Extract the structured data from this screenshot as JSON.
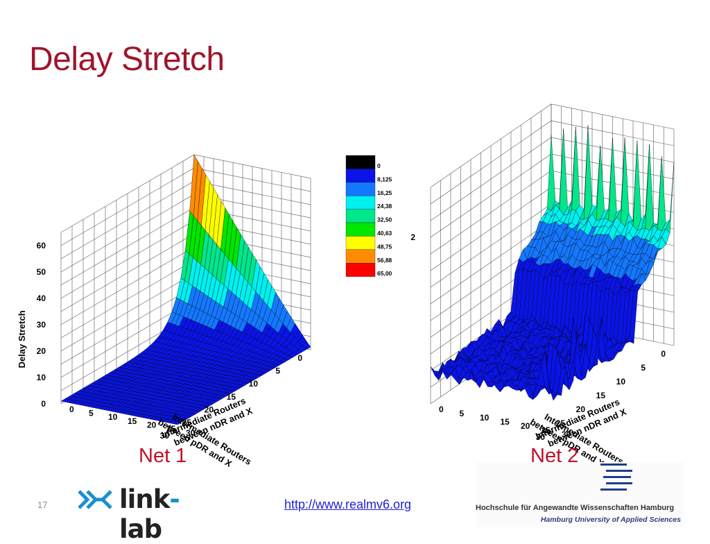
{
  "slide": {
    "title": "Delay Stretch",
    "number": "17",
    "url": "http://www.realmv6.org",
    "logo_left": "link-lab",
    "logo_right_name": "Hochschule für Angewandte Wissenschaften Hamburg",
    "logo_right_english": "Hamburg University of Applied Sciences"
  },
  "colors": {
    "title": "#a0152b",
    "caption": "#c0102a",
    "surface_base": "#1010e0",
    "link": "#1f1fd0"
  },
  "legend": {
    "labels": [
      "0",
      "8,125",
      "16,25",
      "24,38",
      "32,50",
      "40,63",
      "48,75",
      "56,88",
      "65,00"
    ],
    "colors": [
      "#000000",
      "#0a14e6",
      "#1478ff",
      "#00f0f0",
      "#00e68c",
      "#00e600",
      "#ffff00",
      "#ff8c00",
      "#ff0000"
    ]
  },
  "chart_data": [
    {
      "type": "surface3d",
      "caption": "Net 1",
      "zlabel": "Delay Stretch",
      "xlabel": [
        "Intermediate Routers",
        "between pDR and X"
      ],
      "ylabel": [
        "Intermediate Routers",
        "between nDR and X"
      ],
      "xticks": [
        "0",
        "5",
        "10",
        "15",
        "20",
        "25",
        "30"
      ],
      "yticks": [
        "0",
        "5",
        "10",
        "15",
        "20",
        "25",
        "30"
      ],
      "zticks": [
        "0",
        "10",
        "20",
        "30",
        "40",
        "50",
        "60"
      ],
      "xlim": [
        0,
        30
      ],
      "ylim": [
        0,
        30
      ],
      "zlim": [
        0,
        65
      ],
      "grid": true,
      "description_values": {
        "peak_at": {
          "pDR": 0,
          "nDR": 0,
          "value": 65
        },
        "plateau_value": 1,
        "shape": "z rises sharply as both pDR and nDR routers approach 0"
      }
    },
    {
      "type": "surface3d",
      "caption": "Net 2",
      "zlabel": "",
      "xlabel": [
        "Intermediate Routers",
        "between pDR and X"
      ],
      "ylabel": [
        "Intermediate Routers",
        "between nDR and X"
      ],
      "xticks": [
        "0",
        "5",
        "10",
        "15",
        "20",
        "25",
        "30"
      ],
      "yticks": [
        "0",
        "5",
        "10",
        "15",
        "20",
        "25",
        "30"
      ],
      "zticks": [
        "2"
      ],
      "xlim": [
        0,
        30
      ],
      "ylim": [
        0,
        30
      ],
      "zlim": [
        0,
        2.6
      ],
      "grid": true,
      "description_values": {
        "plateau_value": 1.5,
        "spikes_max": 2.4,
        "shape": "raised noisy plateau for small pDR with spikes along the far edge"
      }
    }
  ]
}
